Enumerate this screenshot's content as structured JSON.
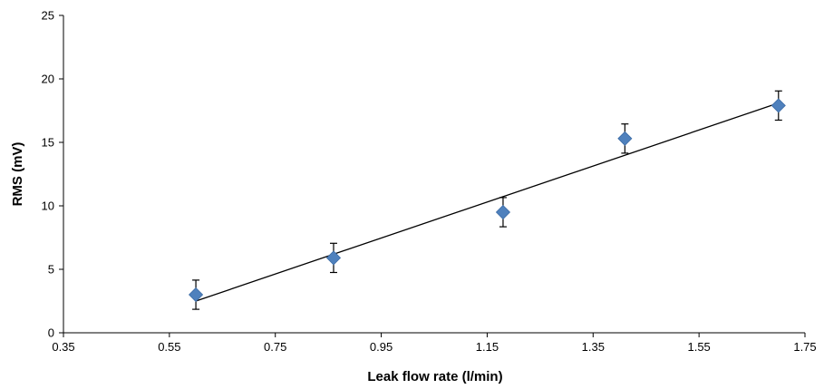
{
  "chart_data": {
    "type": "scatter",
    "title": "",
    "xlabel": "Leak flow rate (l/min)",
    "ylabel": "RMS (mV)",
    "xlim": [
      0.35,
      1.75
    ],
    "ylim": [
      0,
      25
    ],
    "x_ticks": [
      0.35,
      0.55,
      0.75,
      0.95,
      1.15,
      1.35,
      1.55,
      1.75
    ],
    "x_tick_labels": [
      "0.35",
      "0.55",
      "0.75",
      "0.95",
      "1.15",
      "1.35",
      "1.55",
      "1.75"
    ],
    "y_ticks": [
      0,
      5,
      10,
      15,
      20,
      25
    ],
    "y_tick_labels": [
      "0",
      "5",
      "10",
      "15",
      "20",
      "25"
    ],
    "grid": false,
    "legend": "none",
    "marker": "diamond",
    "marker_color": "#4f81bd",
    "series": [
      {
        "x": [
          0.6,
          0.86,
          1.18,
          1.41,
          1.7
        ],
        "y": [
          3.0,
          5.9,
          9.5,
          15.3,
          17.9
        ],
        "error": [
          1.15,
          1.15,
          1.15,
          1.15,
          1.15
        ]
      }
    ],
    "trendline": {
      "type": "linear",
      "x": [
        0.6,
        1.7
      ],
      "y": [
        2.5,
        18.1
      ]
    }
  }
}
